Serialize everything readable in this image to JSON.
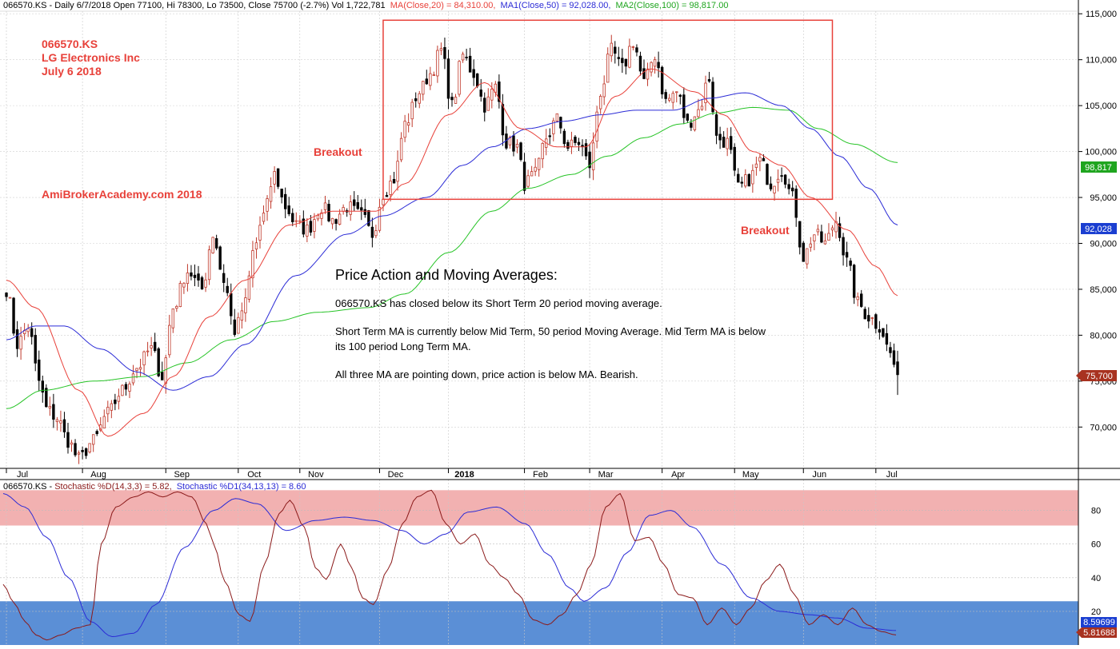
{
  "header": {
    "info": "066570.KS - Daily 6/7/2018 Open 77100, Hi 78300, Lo 73500, Close 75700 (-2.7%) Vol 1,722,781",
    "ma20": "MA(Close,20) = 84,310.00,",
    "ma50": "MA1(Close,50) = 92,028.00,",
    "ma100": "MA2(Close,100) = 98,817.00"
  },
  "annotations": {
    "symbol": "066570.KS",
    "company": "LG Electronics Inc",
    "date": "July 6 2018",
    "breakout_left": "Breakout",
    "breakout_right": "Breakout",
    "watermark": "AmiBrokerAcademy.com  2018",
    "note_title": "Price Action and Moving Averages:",
    "note_1": "066570.KS has closed below its Short Term 20 period moving average.",
    "note_2a": "Short Term MA is currently below Mid Term, 50 period Moving Average. Mid Term MA is below",
    "note_2b": "its 100 period Long Term MA.",
    "note_3": "All three MA are pointing down, price action is below MA. Bearish."
  },
  "stoch_header": {
    "title": "066570.KS - ",
    "fast": "Stochastic %D(14,3,3) = 5.82,",
    "slow": "Stochastic %D1(34,13,13) = 8.60"
  },
  "price_badges": {
    "ma100": "98,817",
    "ma50": "92,028",
    "close": "75,700"
  },
  "stoch_badges": {
    "slow": "8.59699",
    "fast": "5.81688"
  },
  "colors": {
    "up": "#c0392b",
    "down": "#000000",
    "ma20": "#e8413a",
    "ma50": "#2b2bd6",
    "ma100": "#27c427",
    "zone_high": "#f2b1b1",
    "zone_low": "#5b8fd6",
    "stoch_fast": "#8b1a1a",
    "stoch_slow": "#2b2bd6",
    "box": "#e8413a",
    "badge_ma100": "#1fa51f",
    "badge_ma50": "#1b3fd1",
    "badge_close": "#a83220"
  },
  "chart_data": [
    {
      "type": "candlestick",
      "ylim": [
        65500,
        116500
      ],
      "y_ticks": [
        "115,000",
        "110,000",
        "105,000",
        "100,000",
        "95,000",
        "90,000",
        "85,000",
        "80,000",
        "75,000",
        "70,000"
      ],
      "y_tick_values": [
        115000,
        110000,
        105000,
        100000,
        95000,
        90000,
        85000,
        80000,
        75000,
        70000
      ],
      "x_months": [
        "Jul",
        "Aug",
        "Sep",
        "Oct",
        "Nov",
        "Dec",
        "2018",
        "Feb",
        "Mar",
        "Apr",
        "May",
        "Jun",
        "Jul"
      ],
      "month_start_bar": [
        0,
        21,
        44,
        64,
        81,
        103,
        122,
        143,
        161,
        181,
        201,
        220,
        240
      ],
      "close_anchors": [
        [
          0,
          85000
        ],
        [
          3,
          79000
        ],
        [
          6,
          81000
        ],
        [
          9,
          75000
        ],
        [
          11,
          72000
        ],
        [
          14,
          71000
        ],
        [
          17,
          68500
        ],
        [
          20,
          66500
        ],
        [
          24,
          68500
        ],
        [
          28,
          71500
        ],
        [
          32,
          74000
        ],
        [
          36,
          76500
        ],
        [
          40,
          78500
        ],
        [
          43,
          75500
        ],
        [
          46,
          83000
        ],
        [
          50,
          87000
        ],
        [
          54,
          85000
        ],
        [
          57,
          91000
        ],
        [
          60,
          86000
        ],
        [
          63,
          80500
        ],
        [
          66,
          83500
        ],
        [
          68,
          89000
        ],
        [
          71,
          93000
        ],
        [
          74,
          97500
        ],
        [
          77,
          94000
        ],
        [
          80,
          92000
        ],
        [
          83,
          91500
        ],
        [
          87,
          94000
        ],
        [
          90,
          92500
        ],
        [
          94,
          94000
        ],
        [
          98,
          93000
        ],
        [
          101,
          91000
        ],
        [
          104,
          95500
        ],
        [
          107,
          97000
        ],
        [
          110,
          103000
        ],
        [
          114,
          106500
        ],
        [
          117,
          108500
        ],
        [
          120,
          111000
        ],
        [
          123,
          105000
        ],
        [
          126,
          110500
        ],
        [
          129,
          108500
        ],
        [
          132,
          105000
        ],
        [
          135,
          107000
        ],
        [
          138,
          101000
        ],
        [
          141,
          100500
        ],
        [
          143,
          96500
        ],
        [
          146,
          97500
        ],
        [
          149,
          101500
        ],
        [
          152,
          103500
        ],
        [
          155,
          100500
        ],
        [
          158,
          101000
        ],
        [
          161,
          98500
        ],
        [
          164,
          106500
        ],
        [
          167,
          111000
        ],
        [
          170,
          109000
        ],
        [
          173,
          112000
        ],
        [
          176,
          107500
        ],
        [
          179,
          110500
        ],
        [
          182,
          105500
        ],
        [
          185,
          106500
        ],
        [
          188,
          103000
        ],
        [
          191,
          104500
        ],
        [
          194,
          108000
        ],
        [
          196,
          101500
        ],
        [
          199,
          101000
        ],
        [
          202,
          96000
        ],
        [
          205,
          97000
        ],
        [
          208,
          99000
        ],
        [
          211,
          96500
        ],
        [
          214,
          98000
        ],
        [
          217,
          95000
        ],
        [
          220,
          88500
        ],
        [
          223,
          91000
        ],
        [
          226,
          90000
        ],
        [
          229,
          92500
        ],
        [
          232,
          88000
        ],
        [
          235,
          83500
        ],
        [
          238,
          82000
        ],
        [
          241,
          81000
        ],
        [
          244,
          78000
        ],
        [
          246,
          75700
        ]
      ],
      "ma20_anchors": [
        [
          0,
          86000
        ],
        [
          8,
          83000
        ],
        [
          20,
          74000
        ],
        [
          28,
          69000
        ],
        [
          38,
          71500
        ],
        [
          46,
          75500
        ],
        [
          56,
          82000
        ],
        [
          66,
          86000
        ],
        [
          78,
          92000
        ],
        [
          90,
          93500
        ],
        [
          102,
          93500
        ],
        [
          110,
          96500
        ],
        [
          122,
          104000
        ],
        [
          132,
          107500
        ],
        [
          142,
          102500
        ],
        [
          152,
          100500
        ],
        [
          160,
          100500
        ],
        [
          168,
          106000
        ],
        [
          178,
          109000
        ],
        [
          190,
          106500
        ],
        [
          198,
          104000
        ],
        [
          206,
          100000
        ],
        [
          214,
          98500
        ],
        [
          222,
          95000
        ],
        [
          232,
          91500
        ],
        [
          240,
          87500
        ],
        [
          246,
          84300
        ]
      ],
      "ma50_anchors": [
        [
          0,
          79500
        ],
        [
          8,
          81000
        ],
        [
          16,
          81000
        ],
        [
          26,
          78500
        ],
        [
          36,
          76000
        ],
        [
          46,
          74000
        ],
        [
          56,
          75500
        ],
        [
          66,
          79000
        ],
        [
          80,
          86500
        ],
        [
          94,
          91000
        ],
        [
          104,
          93000
        ],
        [
          116,
          95000
        ],
        [
          126,
          98500
        ],
        [
          134,
          100500
        ],
        [
          144,
          102500
        ],
        [
          154,
          103300
        ],
        [
          164,
          104000
        ],
        [
          174,
          104500
        ],
        [
          184,
          104500
        ],
        [
          194,
          105800
        ],
        [
          204,
          106400
        ],
        [
          214,
          105000
        ],
        [
          222,
          102500
        ],
        [
          230,
          99500
        ],
        [
          238,
          96000
        ],
        [
          246,
          92000
        ]
      ],
      "ma100_anchors": [
        [
          0,
          72000
        ],
        [
          10,
          74000
        ],
        [
          24,
          75000
        ],
        [
          38,
          75500
        ],
        [
          50,
          77000
        ],
        [
          62,
          79500
        ],
        [
          74,
          81500
        ],
        [
          86,
          82500
        ],
        [
          100,
          83000
        ],
        [
          110,
          84500
        ],
        [
          122,
          89000
        ],
        [
          134,
          93500
        ],
        [
          144,
          96000
        ],
        [
          156,
          97500
        ],
        [
          166,
          99500
        ],
        [
          176,
          101500
        ],
        [
          186,
          103000
        ],
        [
          196,
          104200
        ],
        [
          206,
          104800
        ],
        [
          216,
          104500
        ],
        [
          224,
          102500
        ],
        [
          234,
          100800
        ],
        [
          246,
          98800
        ]
      ],
      "box_range": {
        "bar_start": 104,
        "bar_end": 228,
        "y_low": 94800,
        "y_high": 114300
      }
    },
    {
      "type": "line",
      "ylim": [
        0,
        95
      ],
      "y_ticks": [
        "80",
        "60",
        "40",
        "20"
      ],
      "y_tick_values": [
        80,
        60,
        40,
        20
      ],
      "zones": [
        [
          71,
          92
        ],
        [
          0,
          26
        ]
      ],
      "series": [
        {
          "label": "Stochastic %D(14,3,3)",
          "anchors": [
            [
              0,
              36
            ],
            [
              3,
              25
            ],
            [
              6,
              14
            ],
            [
              9,
              6
            ],
            [
              12,
              3
            ],
            [
              16,
              6
            ],
            [
              20,
              10
            ],
            [
              24,
              12
            ],
            [
              27,
              60
            ],
            [
              31,
              82
            ],
            [
              36,
              88
            ],
            [
              40,
              91
            ],
            [
              44,
              88
            ],
            [
              48,
              91
            ],
            [
              52,
              88
            ],
            [
              56,
              72
            ],
            [
              58,
              60
            ],
            [
              61,
              38
            ],
            [
              65,
              18
            ],
            [
              68,
              14
            ],
            [
              72,
              48
            ],
            [
              76,
              78
            ],
            [
              79,
              86
            ],
            [
              83,
              70
            ],
            [
              86,
              46
            ],
            [
              89,
              39
            ],
            [
              93,
              60
            ],
            [
              96,
              46
            ],
            [
              99,
              28
            ],
            [
              102,
              24
            ],
            [
              106,
              45
            ],
            [
              110,
              72
            ],
            [
              114,
              88
            ],
            [
              118,
              92
            ],
            [
              122,
              72
            ],
            [
              126,
              60
            ],
            [
              130,
              66
            ],
            [
              134,
              48
            ],
            [
              138,
              40
            ],
            [
              142,
              30
            ],
            [
              146,
              15
            ],
            [
              150,
              12
            ],
            [
              154,
              18
            ],
            [
              158,
              30
            ],
            [
              162,
              48
            ],
            [
              166,
              82
            ],
            [
              170,
              90
            ],
            [
              174,
              62
            ],
            [
              178,
              64
            ],
            [
              182,
              48
            ],
            [
              186,
              30
            ],
            [
              190,
              28
            ],
            [
              194,
              12
            ],
            [
              198,
              22
            ],
            [
              202,
              12
            ],
            [
              206,
              22
            ],
            [
              210,
              38
            ],
            [
              214,
              48
            ],
            [
              218,
              30
            ],
            [
              222,
              12
            ],
            [
              226,
              18
            ],
            [
              230,
              12
            ],
            [
              234,
              22
            ],
            [
              238,
              12
            ],
            [
              242,
              8
            ],
            [
              246,
              6
            ]
          ]
        },
        {
          "label": "Stochastic %D1(34,13,13)",
          "anchors": [
            [
              0,
              90
            ],
            [
              6,
              82
            ],
            [
              12,
              64
            ],
            [
              18,
              40
            ],
            [
              24,
              14
            ],
            [
              30,
              5
            ],
            [
              36,
              7
            ],
            [
              42,
              24
            ],
            [
              50,
              58
            ],
            [
              58,
              80
            ],
            [
              64,
              87
            ],
            [
              70,
              84
            ],
            [
              78,
              68
            ],
            [
              86,
              74
            ],
            [
              94,
              76
            ],
            [
              102,
              74
            ],
            [
              110,
              68
            ],
            [
              116,
              60
            ],
            [
              122,
              66
            ],
            [
              128,
              79
            ],
            [
              136,
              82
            ],
            [
              144,
              72
            ],
            [
              150,
              54
            ],
            [
              156,
              34
            ],
            [
              160,
              26
            ],
            [
              166,
              34
            ],
            [
              172,
              55
            ],
            [
              178,
              77
            ],
            [
              184,
              80
            ],
            [
              190,
              70
            ],
            [
              198,
              48
            ],
            [
              206,
              28
            ],
            [
              214,
              20
            ],
            [
              222,
              18
            ],
            [
              230,
              16
            ],
            [
              238,
              10
            ],
            [
              246,
              8.6
            ]
          ]
        }
      ]
    }
  ]
}
